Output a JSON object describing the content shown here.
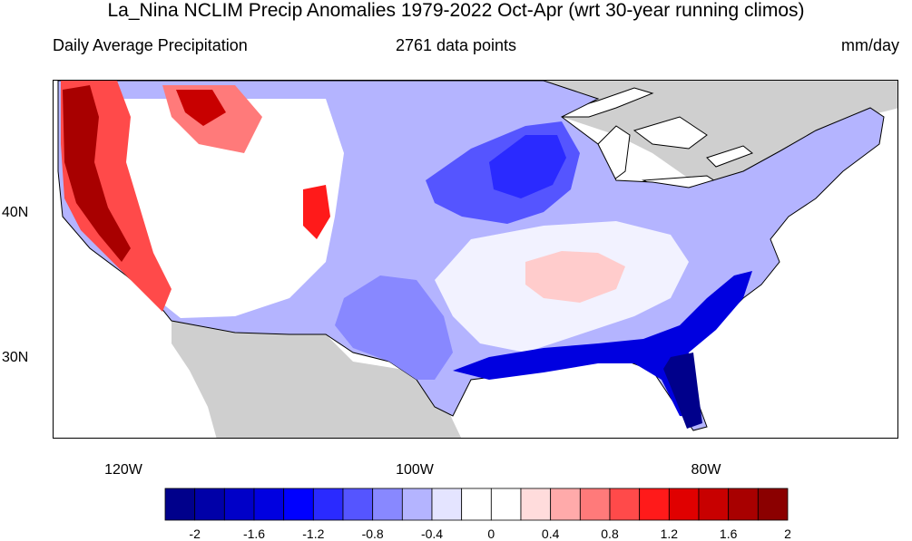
{
  "title": "La_Nina NCLIM Precip Anomalies 1979-2022 Oct-Apr (wrt 30-year running climos)",
  "subtitle_left": "Daily Average Precipitation",
  "subtitle_center": "2761 data points",
  "subtitle_right": "mm/day",
  "lat_labels": [
    "40N",
    "30N"
  ],
  "lon_labels": [
    "120W",
    "100W",
    "80W"
  ],
  "colorbar": {
    "colors": [
      "#00008b",
      "#0000a8",
      "#0000c8",
      "#0000e0",
      "#0000ff",
      "#2a2aff",
      "#5555ff",
      "#8888ff",
      "#b4b4ff",
      "#e4e4ff",
      "#ffffff",
      "#ffffff",
      "#ffdcdc",
      "#ffaaaa",
      "#ff7a7a",
      "#ff4a4a",
      "#ff1a1a",
      "#e00000",
      "#c80000",
      "#a80000",
      "#8b0000"
    ],
    "tick_labels": [
      "-2",
      "-1.6",
      "-1.2",
      "-0.8",
      "-0.4",
      "0",
      "0.4",
      "0.8",
      "1.2",
      "1.6",
      "2"
    ]
  },
  "colors": {
    "land_missing": "#cfcfcf",
    "water": "#ffffff",
    "coast": "#000000"
  }
}
